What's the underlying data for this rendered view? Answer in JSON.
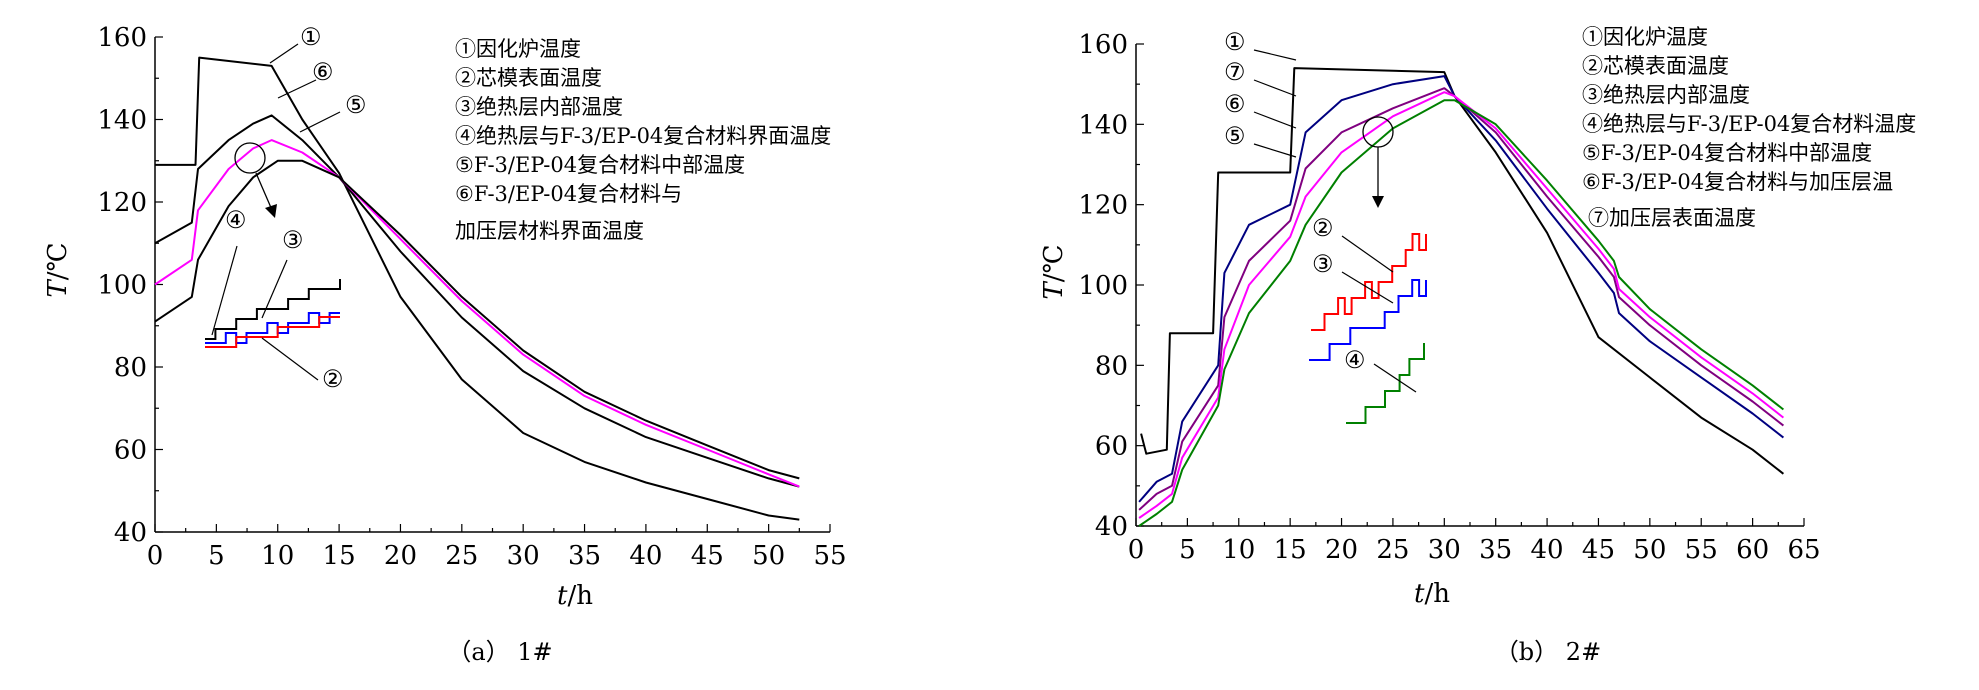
{
  "chart_data": [
    {
      "type": "line",
      "caption": "（a）  1#",
      "xlabel_var": "t",
      "xlabel_unit": "/h",
      "ylabel_var": "T",
      "ylabel_unit": "/℃",
      "xlim": [
        0,
        55
      ],
      "ylim": [
        40,
        160
      ],
      "xticks": [
        0,
        5,
        10,
        15,
        20,
        25,
        30,
        35,
        40,
        45,
        50,
        55
      ],
      "yticks": [
        40,
        60,
        80,
        100,
        120,
        140,
        160
      ],
      "legend": [
        "①因化炉温度",
        "②芯模表面温度",
        "③绝热层内部温度",
        "④绝热层与F-3/EP-04复合材料界面温度",
        "⑤F-3/EP-04复合材料中部温度",
        "⑥F-3/EP-04复合材料与",
        "加压层材料界面温度"
      ],
      "legend_position": "top-right",
      "callouts": [
        "①",
        "⑥",
        "⑤",
        "④",
        "③",
        "②"
      ],
      "series": [
        {
          "name": "①",
          "color": "#000000",
          "x": [
            0,
            3.3,
            3.6,
            9.5,
            12,
            15,
            20,
            25,
            30,
            35,
            40,
            45,
            50,
            52.5
          ],
          "y": [
            129,
            129,
            155,
            153,
            140,
            127,
            97,
            77,
            64,
            57,
            52,
            48,
            44,
            43
          ]
        },
        {
          "name": "⑥",
          "color": "#000000",
          "x": [
            0,
            3,
            3.5,
            6,
            8,
            9.5,
            12,
            15,
            20,
            25,
            30,
            35,
            40,
            45,
            50,
            52.5
          ],
          "y": [
            110,
            115,
            128,
            135,
            139,
            141,
            135,
            126,
            108,
            92,
            79,
            70,
            63,
            58,
            53,
            51
          ]
        },
        {
          "name": "⑤",
          "color": "#ff00ff",
          "x": [
            0,
            3,
            3.5,
            6,
            8,
            9.5,
            12,
            15,
            20,
            25,
            30,
            35,
            40,
            45,
            50,
            52.5
          ],
          "y": [
            100,
            106,
            118,
            128,
            133,
            135,
            132,
            126,
            111,
            96,
            83,
            73,
            66,
            60,
            54,
            51
          ]
        },
        {
          "name": "④",
          "color": "#000000",
          "x": [
            0,
            3,
            3.5,
            6,
            8,
            10,
            12,
            15,
            20,
            25,
            30,
            35,
            40,
            45,
            50,
            52.5
          ],
          "y": [
            91,
            97,
            106,
            119,
            126,
            130,
            130,
            126,
            112,
            97,
            84,
            74,
            67,
            61,
            55,
            53
          ]
        }
      ],
      "inset_series": [
        {
          "name": "④",
          "color": "#000000",
          "values": [
            0,
            1,
            1,
            2,
            2,
            3,
            3,
            3,
            4,
            4,
            5,
            5,
            5,
            6
          ]
        },
        {
          "name": "③",
          "color": "#0000ff",
          "values": [
            0,
            0,
            1,
            0,
            1,
            1,
            2,
            1,
            2,
            2,
            3,
            2,
            3,
            3
          ]
        },
        {
          "name": "②",
          "color": "#ff0000",
          "values": [
            0,
            0,
            0,
            1,
            1,
            1,
            1,
            2,
            2,
            2,
            2,
            3,
            3,
            3
          ]
        }
      ]
    },
    {
      "type": "line",
      "caption": "（b）  2#",
      "xlabel_var": "t",
      "xlabel_unit": "/h",
      "ylabel_var": "T",
      "ylabel_unit": "/℃",
      "xlim": [
        0,
        65
      ],
      "ylim": [
        40,
        160
      ],
      "xticks": [
        0,
        5,
        10,
        15,
        20,
        25,
        30,
        35,
        40,
        45,
        50,
        55,
        60,
        65
      ],
      "yticks": [
        40,
        60,
        80,
        100,
        120,
        140,
        160
      ],
      "legend": [
        "①因化炉温度",
        "②芯模表面温度",
        "③绝热层内部温度",
        "④绝热层与F-3/EP-04复合材料温度",
        "⑤F-3/EP-04复合材料中部温度",
        "⑥F-3/EP-04复合材料与加压层温",
        "⑦加压层表面温度"
      ],
      "legend_position": "top-right",
      "callouts": [
        "①",
        "⑦",
        "⑥",
        "⑤",
        "②",
        "③",
        "④"
      ],
      "series": [
        {
          "name": "①",
          "color": "#000000",
          "x": [
            0.5,
            0.8,
            1,
            3,
            3.3,
            7.5,
            8,
            15,
            15.4,
            30,
            31,
            35,
            40,
            45,
            50,
            55,
            60,
            63
          ],
          "y": [
            63,
            60,
            58,
            59,
            88,
            88,
            128,
            128,
            154,
            153,
            147,
            133,
            113,
            87,
            77,
            67,
            59,
            53
          ]
        },
        {
          "name": "⑦",
          "color": "#000080",
          "x": [
            0.3,
            2,
            3.5,
            4.5,
            8,
            8.6,
            11,
            15,
            16.5,
            20,
            25,
            30,
            31,
            35,
            40,
            45,
            46.5,
            47,
            50,
            55,
            60,
            63
          ],
          "y": [
            46,
            51,
            53,
            66,
            80,
            103,
            115,
            120,
            138,
            146,
            150,
            152,
            147,
            136,
            119,
            103,
            98,
            93,
            86,
            77,
            68,
            62
          ]
        },
        {
          "name": "⑥",
          "color": "#800080",
          "x": [
            0.3,
            2,
            3.5,
            4.5,
            8,
            8.6,
            11,
            15,
            16.5,
            20,
            25,
            30,
            31,
            35,
            40,
            45,
            46.5,
            47,
            50,
            55,
            60,
            63
          ],
          "y": [
            44,
            48,
            50,
            61,
            75,
            92,
            106,
            116,
            129,
            138,
            144,
            149,
            147,
            138,
            122,
            107,
            102,
            97,
            90,
            80,
            71,
            65
          ]
        },
        {
          "name": "⑤",
          "color": "#ff00ff",
          "x": [
            0.3,
            2,
            3.5,
            4.5,
            8,
            8.6,
            11,
            15,
            16.5,
            20,
            25,
            30,
            31,
            35,
            40,
            45,
            46.5,
            47,
            50,
            55,
            60,
            63
          ],
          "y": [
            42,
            45,
            48,
            57,
            72,
            84,
            100,
            112,
            122,
            133,
            142,
            148,
            147,
            139,
            124,
            109,
            104,
            99,
            92,
            82,
            73,
            67
          ]
        },
        {
          "name": "④",
          "color": "#008000",
          "x": [
            0.3,
            2,
            3.5,
            4.5,
            8,
            8.6,
            11,
            15,
            16.5,
            20,
            25,
            30,
            31,
            35,
            40,
            45,
            46.5,
            47,
            50,
            55,
            60,
            63
          ],
          "y": [
            40,
            43,
            46,
            54,
            70,
            79,
            93,
            106,
            115,
            128,
            139,
            146,
            146,
            140,
            126,
            111,
            106,
            102,
            94,
            84,
            75,
            69
          ]
        }
      ],
      "inset_series": [
        {
          "name": "②",
          "color": "#ff0000",
          "values": [
            0,
            0,
            1,
            1,
            2,
            1,
            2,
            2,
            3,
            2,
            3,
            3,
            4,
            4,
            5,
            6,
            5,
            6
          ]
        },
        {
          "name": "③",
          "color": "#0000ff",
          "values": [
            0,
            0,
            0,
            1,
            1,
            1,
            2,
            2,
            2,
            2,
            2,
            3,
            3,
            4,
            4,
            5,
            4,
            5
          ]
        },
        {
          "name": "④",
          "color": "#008000",
          "values": [
            0,
            0,
            0,
            0,
            1,
            1,
            1,
            1,
            2,
            2,
            2,
            3,
            3,
            4,
            4,
            4,
            5
          ]
        }
      ]
    }
  ]
}
